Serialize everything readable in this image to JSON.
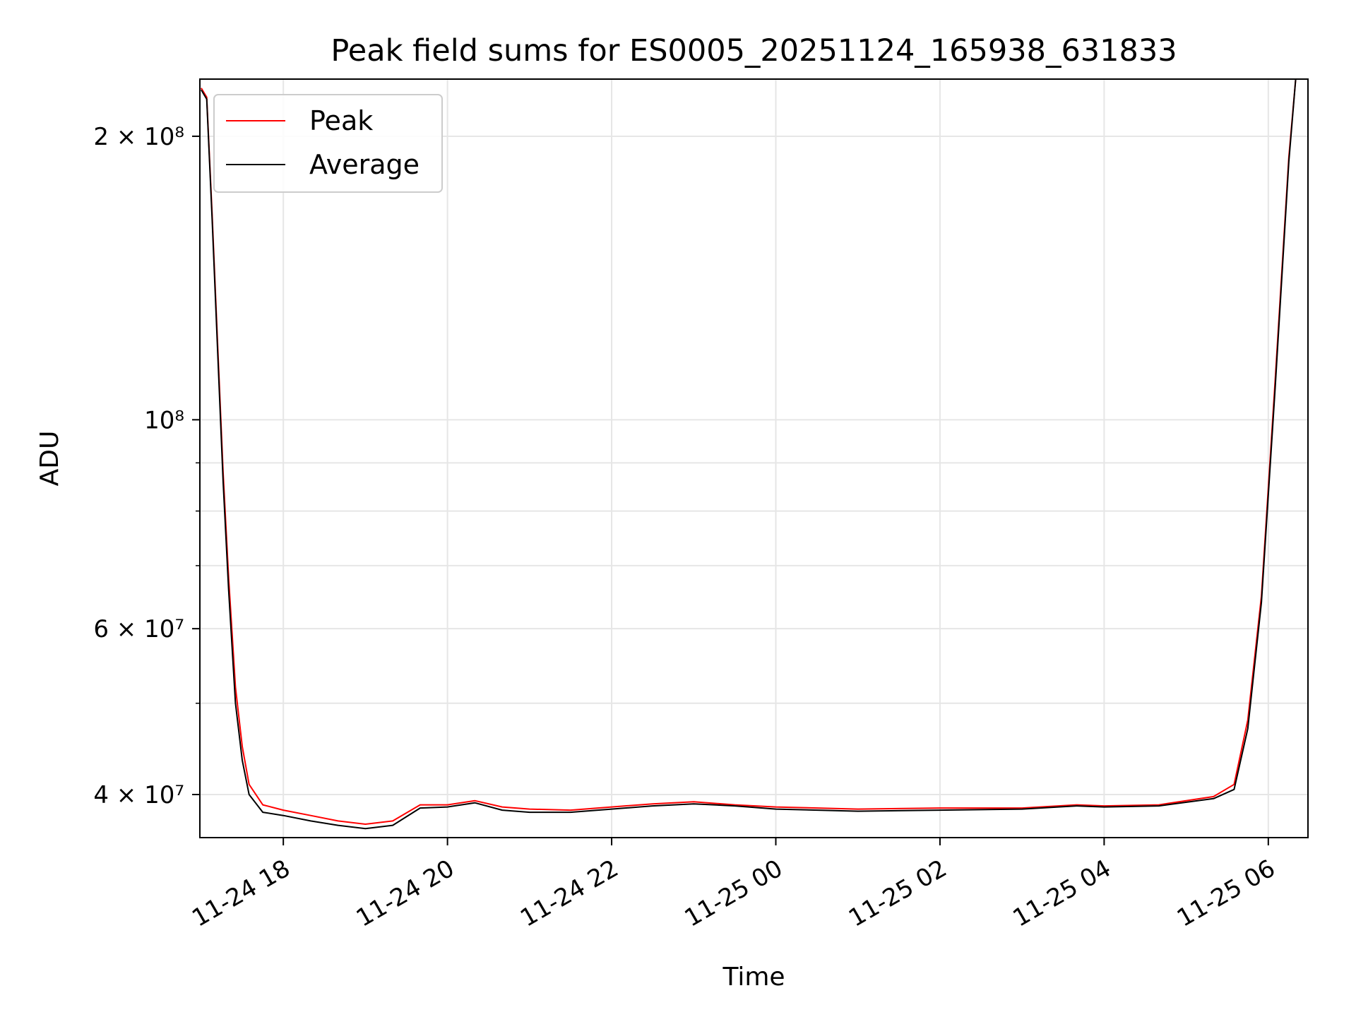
{
  "chart_data": {
    "type": "line",
    "title": "Peak field sums for ES0005_20251124_165938_631833",
    "xlabel": "Time",
    "ylabel": "ADU",
    "x_scale": "time",
    "y_scale": "log",
    "xlim": [
      "2025-11-24 16:59",
      "2025-11-25 06:29"
    ],
    "ylim": [
      36000000,
      230000000
    ],
    "grid": true,
    "legend_position": "top-left",
    "x_ticks": [
      {
        "value": "2025-11-24 18:00",
        "label": "11-24 18"
      },
      {
        "value": "2025-11-24 20:00",
        "label": "11-24 20"
      },
      {
        "value": "2025-11-24 22:00",
        "label": "11-24 22"
      },
      {
        "value": "2025-11-25 00:00",
        "label": "11-25 00"
      },
      {
        "value": "2025-11-25 02:00",
        "label": "11-25 02"
      },
      {
        "value": "2025-11-25 04:00",
        "label": "11-25 04"
      },
      {
        "value": "2025-11-25 06:00",
        "label": "11-25 06"
      }
    ],
    "y_ticks_major": [
      {
        "value": 40000000,
        "label": "4 × 10⁷"
      },
      {
        "value": 60000000,
        "label": "6 × 10⁷"
      },
      {
        "value": 100000000,
        "label": "10⁸"
      },
      {
        "value": 200000000,
        "label": "2 × 10⁸"
      }
    ],
    "y_ticks_minor": [
      50000000,
      70000000,
      80000000,
      90000000
    ],
    "series": [
      {
        "name": "Peak",
        "color": "#ff0000",
        "points": [
          [
            "2025-11-24 17:00",
            225000000
          ],
          [
            "2025-11-24 17:04",
            220000000
          ],
          [
            "2025-11-24 17:08",
            165000000
          ],
          [
            "2025-11-24 17:12",
            120000000
          ],
          [
            "2025-11-24 17:16",
            88000000
          ],
          [
            "2025-11-24 17:20",
            68000000
          ],
          [
            "2025-11-24 17:25",
            52000000
          ],
          [
            "2025-11-24 17:30",
            45000000
          ],
          [
            "2025-11-24 17:35",
            41000000
          ],
          [
            "2025-11-24 17:45",
            39000000
          ],
          [
            "2025-11-24 18:00",
            38500000
          ],
          [
            "2025-11-24 18:20",
            38000000
          ],
          [
            "2025-11-24 18:40",
            37500000
          ],
          [
            "2025-11-24 19:00",
            37200000
          ],
          [
            "2025-11-24 19:20",
            37500000
          ],
          [
            "2025-11-24 19:40",
            39000000
          ],
          [
            "2025-11-24 20:00",
            39000000
          ],
          [
            "2025-11-24 20:20",
            39400000
          ],
          [
            "2025-11-24 20:40",
            38800000
          ],
          [
            "2025-11-24 21:00",
            38600000
          ],
          [
            "2025-11-24 21:30",
            38500000
          ],
          [
            "2025-11-24 22:00",
            38800000
          ],
          [
            "2025-11-24 22:30",
            39100000
          ],
          [
            "2025-11-24 23:00",
            39300000
          ],
          [
            "2025-11-24 23:30",
            39000000
          ],
          [
            "2025-11-25 00:00",
            38800000
          ],
          [
            "2025-11-25 01:00",
            38600000
          ],
          [
            "2025-11-25 02:00",
            38700000
          ],
          [
            "2025-11-25 03:00",
            38700000
          ],
          [
            "2025-11-25 03:40",
            39000000
          ],
          [
            "2025-11-25 04:00",
            38900000
          ],
          [
            "2025-11-25 04:40",
            39000000
          ],
          [
            "2025-11-25 05:20",
            39800000
          ],
          [
            "2025-11-25 05:35",
            41000000
          ],
          [
            "2025-11-25 05:45",
            48000000
          ],
          [
            "2025-11-25 05:55",
            65000000
          ],
          [
            "2025-11-25 06:05",
            110000000
          ],
          [
            "2025-11-25 06:15",
            190000000
          ],
          [
            "2025-11-25 06:20",
            230000000
          ]
        ]
      },
      {
        "name": "Average",
        "color": "#000000",
        "points": [
          [
            "2025-11-24 17:00",
            224000000
          ],
          [
            "2025-11-24 17:04",
            219000000
          ],
          [
            "2025-11-24 17:08",
            163000000
          ],
          [
            "2025-11-24 17:12",
            118000000
          ],
          [
            "2025-11-24 17:16",
            86000000
          ],
          [
            "2025-11-24 17:20",
            66000000
          ],
          [
            "2025-11-24 17:25",
            50000000
          ],
          [
            "2025-11-24 17:30",
            43500000
          ],
          [
            "2025-11-24 17:35",
            40000000
          ],
          [
            "2025-11-24 17:45",
            38300000
          ],
          [
            "2025-11-24 18:00",
            38000000
          ],
          [
            "2025-11-24 18:20",
            37500000
          ],
          [
            "2025-11-24 18:40",
            37100000
          ],
          [
            "2025-11-24 19:00",
            36800000
          ],
          [
            "2025-11-24 19:20",
            37100000
          ],
          [
            "2025-11-24 19:40",
            38700000
          ],
          [
            "2025-11-24 20:00",
            38800000
          ],
          [
            "2025-11-24 20:20",
            39200000
          ],
          [
            "2025-11-24 20:40",
            38500000
          ],
          [
            "2025-11-24 21:00",
            38300000
          ],
          [
            "2025-11-24 21:30",
            38300000
          ],
          [
            "2025-11-24 22:00",
            38600000
          ],
          [
            "2025-11-24 22:30",
            38900000
          ],
          [
            "2025-11-24 23:00",
            39100000
          ],
          [
            "2025-11-24 23:30",
            38900000
          ],
          [
            "2025-11-25 00:00",
            38600000
          ],
          [
            "2025-11-25 01:00",
            38400000
          ],
          [
            "2025-11-25 02:00",
            38500000
          ],
          [
            "2025-11-25 03:00",
            38600000
          ],
          [
            "2025-11-25 03:40",
            38900000
          ],
          [
            "2025-11-25 04:00",
            38800000
          ],
          [
            "2025-11-25 04:40",
            38900000
          ],
          [
            "2025-11-25 05:20",
            39600000
          ],
          [
            "2025-11-25 05:35",
            40500000
          ],
          [
            "2025-11-25 05:45",
            47000000
          ],
          [
            "2025-11-25 05:55",
            64000000
          ],
          [
            "2025-11-25 06:05",
            108000000
          ],
          [
            "2025-11-25 06:15",
            188000000
          ],
          [
            "2025-11-25 06:20",
            230000000
          ]
        ]
      }
    ]
  }
}
